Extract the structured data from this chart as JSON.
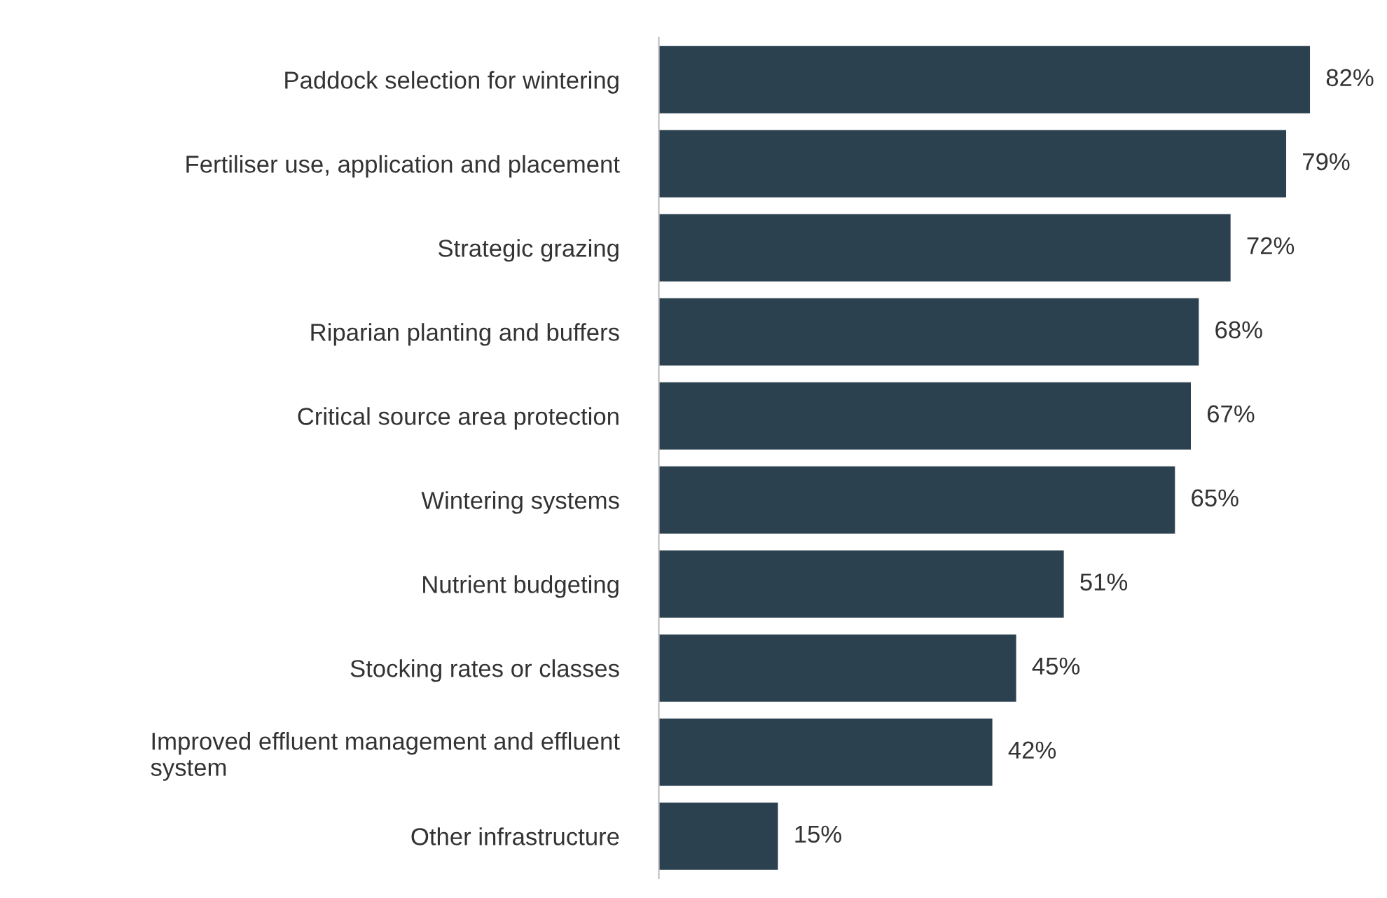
{
  "chart_data": {
    "type": "bar",
    "orientation": "horizontal",
    "categories": [
      "Paddock selection for wintering",
      "Fertiliser use, application and placement",
      "Strategic grazing",
      "Riparian planting and buffers",
      "Critical source area protection",
      "Wintering systems",
      "Nutrient budgeting",
      "Stocking rates or classes",
      "Improved effluent management and effluent\nsystem",
      "Other infrastructure"
    ],
    "values": [
      82,
      79,
      72,
      68,
      67,
      65,
      51,
      45,
      42,
      15
    ],
    "value_labels": [
      "82%",
      "79%",
      "72%",
      "68%",
      "67%",
      "65%",
      "51%",
      "45%",
      "42%",
      "15%"
    ],
    "color": "#2b4150",
    "grid": false,
    "legend": false
  }
}
